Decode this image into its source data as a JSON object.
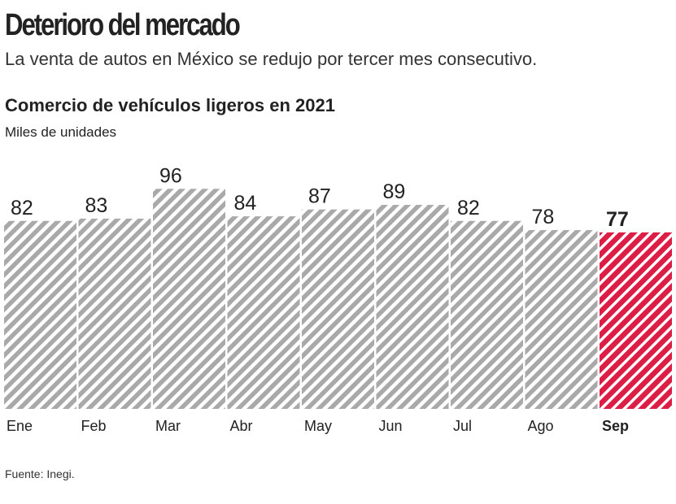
{
  "header": {
    "title": "Deterioro del mercado",
    "subtitle": "La venta de autos en México se redujo por tercer mes consecutivo."
  },
  "chart_data": {
    "type": "bar",
    "title": "Comercio de vehículos ligeros en 2021",
    "ylabel": "Miles de unidades",
    "categories": [
      "Ene",
      "Feb",
      "Mar",
      "Abr",
      "May",
      "Jun",
      "Jul",
      "Ago",
      "Sep"
    ],
    "values": [
      82,
      83,
      96,
      84,
      87,
      89,
      82,
      78,
      77
    ],
    "highlight_index": 8,
    "ylim": [
      0,
      100
    ],
    "colors": {
      "default": "#a9a9a9",
      "highlight": "#dc1e46"
    }
  },
  "footer": {
    "source": "Fuente: Inegi."
  }
}
